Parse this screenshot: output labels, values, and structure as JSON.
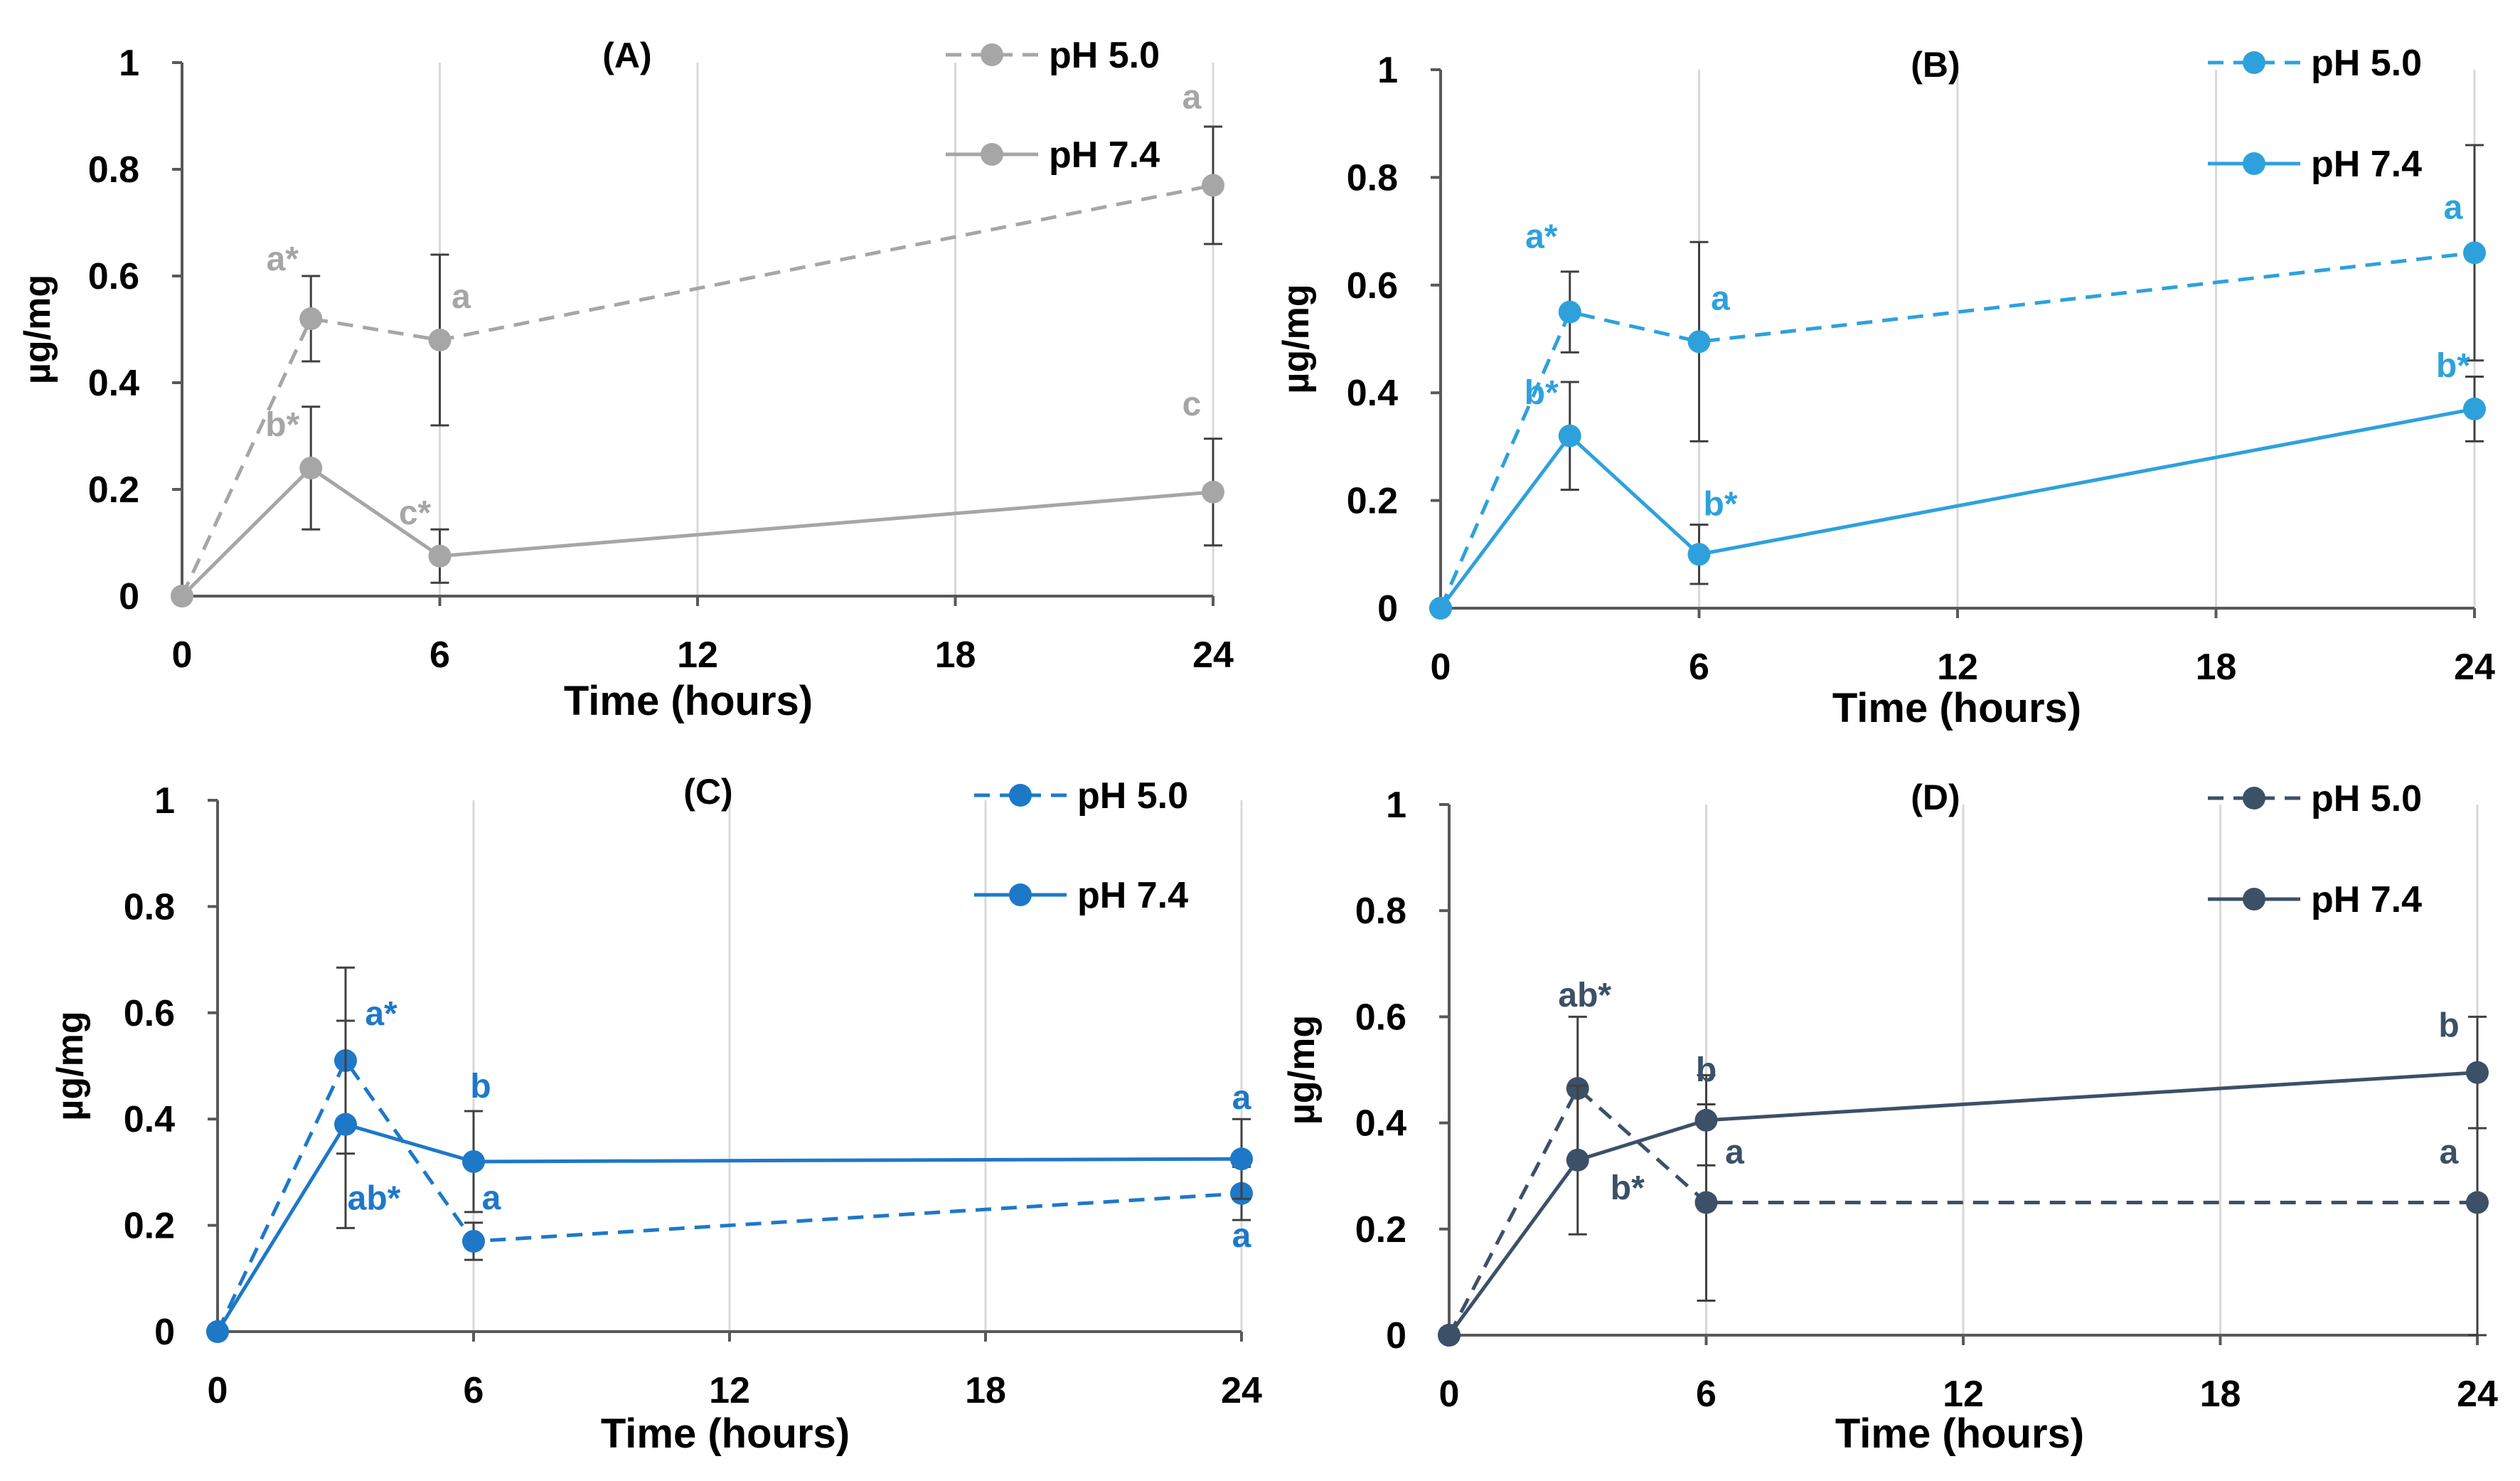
{
  "chart_data": [
    {
      "type": "line",
      "title": "(A)",
      "xlabel": "Time (hours)",
      "ylabel": "µg/mg",
      "xlim": [
        0,
        24
      ],
      "ylim": [
        0,
        1
      ],
      "xticks": [
        0,
        6,
        12,
        18,
        24
      ],
      "yticks": [
        0,
        0.2,
        0.4,
        0.6,
        0.8,
        1
      ],
      "ytick_labels": [
        "0",
        "0.2",
        "0.4",
        "0.6",
        "0.8",
        "1"
      ],
      "grid": "vertical",
      "legend_position": "top-right",
      "series": [
        {
          "name": "pH 5.0",
          "style": "dashed",
          "color": "#a6a6a6",
          "x": [
            0,
            3,
            6,
            24
          ],
          "y": [
            0,
            0.52,
            0.48,
            0.77
          ],
          "err": [
            0,
            0.08,
            0.16,
            0.11
          ],
          "labels": [
            "",
            "a*",
            "a",
            "a"
          ]
        },
        {
          "name": "pH 7.4",
          "style": "solid",
          "color": "#a6a6a6",
          "x": [
            0,
            3,
            6,
            24
          ],
          "y": [
            0,
            0.24,
            0.075,
            0.195
          ],
          "err": [
            0,
            0.115,
            0.05,
            0.1
          ],
          "labels": [
            "",
            "b*",
            "c*",
            "c"
          ]
        }
      ]
    },
    {
      "type": "line",
      "title": "(B)",
      "xlabel": "Time (hours)",
      "ylabel": "µg/mg",
      "xlim": [
        0,
        24
      ],
      "ylim": [
        0,
        1
      ],
      "xticks": [
        0,
        6,
        12,
        18,
        24
      ],
      "yticks": [
        0,
        0.2,
        0.4,
        0.6,
        0.8,
        1
      ],
      "ytick_labels": [
        "0",
        "0.2",
        "0.4",
        "0.6",
        "0.8",
        "1"
      ],
      "grid": "vertical",
      "legend_position": "top-right",
      "series": [
        {
          "name": "pH 5.0",
          "style": "dashed",
          "color": "#2ea1dc",
          "x": [
            0,
            3,
            6,
            24
          ],
          "y": [
            0,
            0.55,
            0.495,
            0.66
          ],
          "err": [
            0,
            0.075,
            0.185,
            0.2
          ],
          "labels": [
            "",
            "a*",
            "a",
            "a"
          ]
        },
        {
          "name": "pH 7.4",
          "style": "solid",
          "color": "#2ea1dc",
          "x": [
            0,
            3,
            6,
            24
          ],
          "y": [
            0,
            0.32,
            0.1,
            0.37
          ],
          "err": [
            0,
            0.1,
            0.055,
            0.06
          ],
          "labels": [
            "",
            "b*",
            "b*",
            "b*"
          ]
        }
      ]
    },
    {
      "type": "line",
      "title": "(C)",
      "xlabel": "Time (hours)",
      "ylabel": "µg/mg",
      "xlim": [
        0,
        24
      ],
      "ylim": [
        0,
        1
      ],
      "xticks": [
        0,
        6,
        12,
        18,
        24
      ],
      "yticks": [
        0,
        0.2,
        0.4,
        0.6,
        0.8,
        1
      ],
      "ytick_labels": [
        "0",
        "0.2",
        "0.4",
        "0.6",
        "0.8",
        "1"
      ],
      "grid": "vertical",
      "legend_position": "top-right",
      "series": [
        {
          "name": "pH 5.0",
          "style": "dashed",
          "color": "#1e78c8",
          "x": [
            0,
            3,
            6,
            24
          ],
          "y": [
            0,
            0.51,
            0.17,
            0.26
          ],
          "err": [
            0,
            0.175,
            0.035,
            0.05
          ],
          "labels": [
            "",
            "a*",
            "a",
            "a"
          ]
        },
        {
          "name": "pH 7.4",
          "style": "solid",
          "color": "#1e78c8",
          "x": [
            0,
            3,
            6,
            24
          ],
          "y": [
            0,
            0.39,
            0.32,
            0.325
          ],
          "err": [
            0,
            0.195,
            0.095,
            0.075
          ],
          "labels": [
            "",
            "ab*",
            "b",
            "a"
          ]
        }
      ]
    },
    {
      "type": "line",
      "title": "(D)",
      "xlabel": "Time (hours)",
      "ylabel": "µg/mg",
      "xlim": [
        0,
        24
      ],
      "ylim": [
        0,
        1
      ],
      "xticks": [
        0,
        6,
        12,
        18,
        24
      ],
      "yticks": [
        0,
        0.2,
        0.4,
        0.6,
        0.8,
        1
      ],
      "ytick_labels": [
        "0",
        "0.2",
        "0.4",
        "0.6",
        "0.8",
        "1"
      ],
      "grid": "vertical",
      "legend_position": "top-right",
      "series": [
        {
          "name": "pH 5.0",
          "style": "dashed",
          "color": "#3c5068",
          "x": [
            0,
            3,
            6,
            24
          ],
          "y": [
            0,
            0.465,
            0.25,
            0.25
          ],
          "err": [
            0,
            0.135,
            0.185,
            0.25
          ],
          "labels": [
            "",
            "ab*",
            "a",
            "a"
          ]
        },
        {
          "name": "pH 7.4",
          "style": "solid",
          "color": "#3c5068",
          "x": [
            0,
            3,
            6,
            24
          ],
          "y": [
            0,
            0.33,
            0.405,
            0.495
          ],
          "err": [
            0,
            0.14,
            0.085,
            0.105
          ],
          "labels": [
            "",
            "b*",
            "b",
            "b"
          ]
        }
      ]
    }
  ]
}
